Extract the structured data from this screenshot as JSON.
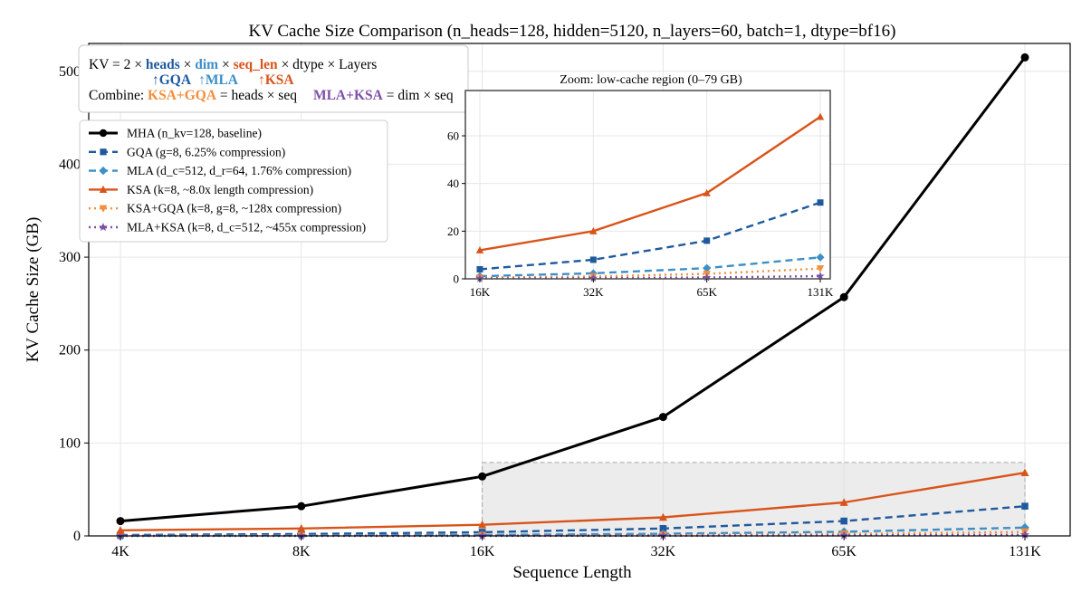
{
  "chart_data": [
    {
      "type": "line",
      "title": "KV Cache Size Comparison  (n_heads=128, hidden=5120, n_layers=60, batch=1, dtype=bf16)",
      "xlabel": "Sequence Length",
      "ylabel": "KV Cache Size (GB)",
      "categories": [
        "4K",
        "8K",
        "16K",
        "32K",
        "65K",
        "131K"
      ],
      "ylim": [
        0,
        530
      ],
      "yticks": [
        0,
        100,
        200,
        300,
        400,
        500
      ],
      "grid": true,
      "legend_position": "upper-left",
      "highlight_region": {
        "x": [
          "16K",
          "131K"
        ],
        "y": [
          0,
          79
        ]
      },
      "series": [
        {
          "name": "MHA (n_kv=128, baseline)",
          "color": "#000000",
          "style": "solid",
          "marker": "circle",
          "values": [
            16,
            32,
            64,
            128,
            257,
            515
          ]
        },
        {
          "name": "GQA (g=8, 6.25% compression)",
          "color": "#1f5a9e",
          "style": "dashed",
          "marker": "square",
          "values": [
            1,
            2,
            4,
            8,
            16,
            32
          ]
        },
        {
          "name": "MLA (d_c=512, d_r=64, 1.76% compression)",
          "color": "#3d8fc8",
          "style": "dashed",
          "marker": "diamond",
          "values": [
            0.28,
            0.57,
            1.1,
            2.3,
            4.5,
            9
          ]
        },
        {
          "name": "KSA (k=8, ~8.0x length compression)",
          "color": "#d9541a",
          "style": "solid",
          "marker": "triangle-up",
          "values": [
            6,
            8,
            12,
            20,
            36,
            68
          ]
        },
        {
          "name": "KSA+GQA (k=8, g=8, ~128x compression)",
          "color": "#f28e3c",
          "style": "dotted",
          "marker": "triangle-down",
          "values": [
            0.13,
            0.25,
            0.5,
            1.0,
            2.1,
            4.3
          ]
        },
        {
          "name": "MLA+KSA (k=8, d_c=512, ~455x compression)",
          "color": "#7e4fa8",
          "style": "dotted",
          "marker": "star",
          "values": [
            0.035,
            0.07,
            0.14,
            0.28,
            0.56,
            1.13
          ]
        }
      ]
    },
    {
      "type": "line",
      "title": "Zoom: low-cache region (0–79 GB)",
      "categories": [
        "16K",
        "32K",
        "65K",
        "131K"
      ],
      "ylim": [
        0,
        79
      ],
      "yticks": [
        0,
        20,
        40,
        60
      ],
      "grid": true,
      "series_from_main_chart": "last four points of each series"
    }
  ],
  "formula_box": {
    "line1": [
      {
        "text": "KV = 2 × ",
        "color": "#000000",
        "bold": false
      },
      {
        "text": "heads",
        "color": "#1f5a9e",
        "bold": true
      },
      {
        "text": " × ",
        "color": "#000000",
        "bold": false
      },
      {
        "text": "dim",
        "color": "#3d8fc8",
        "bold": true
      },
      {
        "text": " × ",
        "color": "#000000",
        "bold": false
      },
      {
        "text": "seq_len",
        "color": "#d9541a",
        "bold": true
      },
      {
        "text": " × dtype × Layers",
        "color": "#000000",
        "bold": false
      }
    ],
    "line2": [
      {
        "text": "↑GQA",
        "color": "#1f5a9e",
        "bold": true
      },
      {
        "text": "↑MLA",
        "color": "#3d8fc8",
        "bold": true
      },
      {
        "text": "↑KSA",
        "color": "#d9541a",
        "bold": true
      }
    ],
    "line3": [
      {
        "text": "Combine: ",
        "color": "#000000",
        "bold": false
      },
      {
        "text": "KSA+GQA",
        "color": "#f28e3c",
        "bold": true
      },
      {
        "text": " = heads × seq",
        "color": "#000000",
        "bold": false
      },
      {
        "text": "MLA+KSA",
        "color": "#7e4fa8",
        "bold": true
      },
      {
        "text": " = dim × seq",
        "color": "#000000",
        "bold": false
      }
    ]
  }
}
